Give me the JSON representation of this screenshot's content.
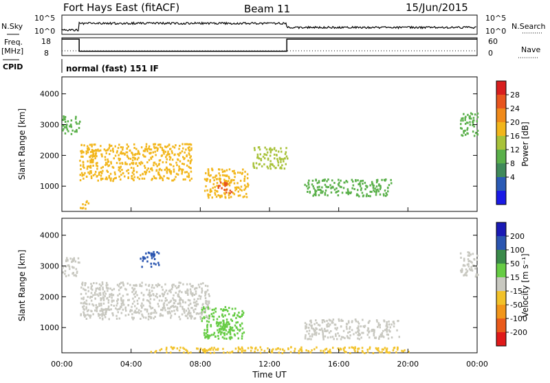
{
  "header": {
    "station": "Fort Hays East (fitACF)",
    "beam": "Beam 11",
    "date": "15/Jun/2015"
  },
  "top_panel": {
    "left_label": "N.Sky",
    "left_ticks": [
      "10^5",
      "10^0"
    ],
    "right_ticks": [
      "10^5",
      "10^0"
    ],
    "right_label": "N.Search"
  },
  "freq_panel": {
    "left_label_1": "Freq.",
    "left_label_2": "[MHz]",
    "left_ticks": [
      "18",
      "8"
    ],
    "right_ticks": [
      "60",
      "0"
    ],
    "right_label": "Nave"
  },
  "cpid": {
    "label": "CPID",
    "mode": "normal (fast) 151 IF"
  },
  "power_panel": {
    "ylabel": "Slant Range [km]",
    "colorbar_label": "Power [dB]",
    "colorbar_ticks": [
      "28",
      "24",
      "20",
      "16",
      "12",
      "8",
      "4"
    ],
    "colors": [
      "#1a1ae6",
      "#2a5ab5",
      "#3f8a5a",
      "#5ab04a",
      "#a8c23a",
      "#f2b61c",
      "#f08a1a",
      "#e8551e",
      "#d81e1e"
    ]
  },
  "velocity_panel": {
    "ylabel": "Slant Range [km]",
    "colorbar_label": "Velocity [m s⁻¹]",
    "colorbar_ticks": [
      "200",
      "100",
      "50",
      "15",
      "-15",
      "-50",
      "-100",
      "-200"
    ],
    "colors": [
      "#1a1ab5",
      "#2a55b0",
      "#3a8a4a",
      "#66cc44",
      "#c8c8c0",
      "#f2c22a",
      "#f2961a",
      "#ea5a1a",
      "#e01a1a"
    ]
  },
  "x_axis": {
    "label": "Time UT",
    "ticks": [
      "00:00",
      "04:00",
      "08:00",
      "12:00",
      "16:00",
      "20:00",
      "00:00"
    ]
  },
  "chart_data": {
    "type": "heatmap",
    "x_unit": "hours UT",
    "xlim": [
      0,
      24
    ],
    "range_ticks": [
      1000,
      2000,
      3000,
      4000
    ],
    "ylim": [
      180,
      4550
    ],
    "frequency": {
      "ylim": [
        8,
        18
      ],
      "segments": [
        {
          "t0": 0,
          "t1": 1,
          "mhz": 18
        },
        {
          "t0": 1,
          "t1": 13,
          "mhz": 10
        },
        {
          "t0": 13,
          "t1": 24,
          "mhz": 18
        }
      ]
    },
    "power_features": [
      {
        "t0": 8.2,
        "t1": 10.8,
        "r0": 650,
        "r1": 1600,
        "level": 18
      },
      {
        "t0": 9.0,
        "t1": 9.8,
        "r0": 800,
        "r1": 1150,
        "level": 28
      },
      {
        "t0": 1.0,
        "t1": 7.5,
        "r0": 1200,
        "r1": 2400,
        "level": 20
      },
      {
        "t0": 14.0,
        "t1": 19.0,
        "r0": 700,
        "r1": 1250,
        "level": 12
      },
      {
        "t0": 0.0,
        "t1": 1.0,
        "r0": 2700,
        "r1": 3300,
        "level": 14
      },
      {
        "t0": 23.0,
        "t1": 24.0,
        "r0": 2600,
        "r1": 3400,
        "level": 12
      },
      {
        "t0": 11.0,
        "t1": 13.0,
        "r0": 1600,
        "r1": 2300,
        "level": 16
      },
      {
        "t0": 1.0,
        "t1": 1.5,
        "r0": 300,
        "r1": 600,
        "level": 20
      }
    ],
    "velocity_features": [
      {
        "t0": 8.0,
        "t1": 10.5,
        "r0": 650,
        "r1": 1700,
        "velocity": 30
      },
      {
        "t0": 9.0,
        "t1": 10.0,
        "r0": 800,
        "r1": 1200,
        "velocity": 60
      },
      {
        "t0": 1.0,
        "t1": 8.5,
        "r0": 1300,
        "r1": 2500,
        "velocity": 0
      },
      {
        "t0": 14.0,
        "t1": 19.5,
        "r0": 650,
        "r1": 1300,
        "velocity": 0
      },
      {
        "t0": 0.0,
        "t1": 1.0,
        "r0": 2700,
        "r1": 3300,
        "velocity": 0
      },
      {
        "t0": 23.0,
        "t1": 24.0,
        "r0": 2600,
        "r1": 3500,
        "velocity": 0
      },
      {
        "t0": 4.5,
        "t1": 5.6,
        "r0": 3000,
        "r1": 3500,
        "velocity": 150
      },
      {
        "t0": 5.0,
        "t1": 20.0,
        "r0": 200,
        "r1": 400,
        "velocity": -30
      }
    ]
  }
}
